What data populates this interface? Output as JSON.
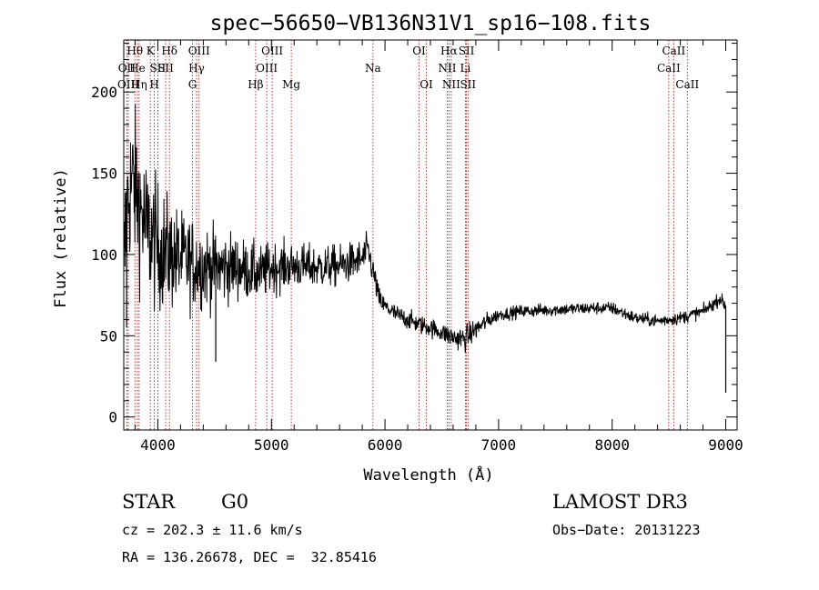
{
  "chart_data": {
    "type": "line",
    "title": "spec−56650−VB136N31V1_sp16−108.fits",
    "xlabel": "Wavelength (Å)",
    "ylabel": "Flux (relative)",
    "xlim": [
      3700,
      9100
    ],
    "ylim": [
      -8,
      232
    ],
    "xticks": [
      4000,
      5000,
      6000,
      7000,
      8000,
      9000
    ],
    "yticks": [
      0,
      50,
      100,
      150,
      200
    ],
    "grid": false,
    "line_color": "#000000",
    "marker_color": "#b22222",
    "spectrum_anchors": [
      [
        3700,
        80
      ],
      [
        3720,
        120
      ],
      [
        3750,
        140
      ],
      [
        3780,
        145
      ],
      [
        3820,
        135
      ],
      [
        3900,
        115
      ],
      [
        4000,
        105
      ],
      [
        4100,
        100
      ],
      [
        4200,
        97
      ],
      [
        4300,
        95
      ],
      [
        4400,
        93
      ],
      [
        4500,
        92
      ],
      [
        4600,
        92
      ],
      [
        4700,
        92
      ],
      [
        4800,
        90
      ],
      [
        4900,
        88
      ],
      [
        5000,
        92
      ],
      [
        5200,
        93
      ],
      [
        5400,
        92
      ],
      [
        5600,
        93
      ],
      [
        5800,
        97
      ],
      [
        5850,
        103
      ],
      [
        5900,
        88
      ],
      [
        5950,
        72
      ],
      [
        6000,
        68
      ],
      [
        6100,
        63
      ],
      [
        6200,
        60
      ],
      [
        6300,
        57
      ],
      [
        6400,
        55
      ],
      [
        6500,
        52
      ],
      [
        6600,
        49
      ],
      [
        6700,
        48
      ],
      [
        6750,
        51
      ],
      [
        6800,
        54
      ],
      [
        6900,
        59
      ],
      [
        7000,
        63
      ],
      [
        7200,
        65
      ],
      [
        7500,
        66
      ],
      [
        7800,
        67
      ],
      [
        8000,
        67
      ],
      [
        8100,
        64
      ],
      [
        8200,
        61
      ],
      [
        8300,
        60
      ],
      [
        8400,
        59
      ],
      [
        8500,
        60
      ],
      [
        8600,
        61
      ],
      [
        8700,
        63
      ],
      [
        8800,
        65
      ],
      [
        8900,
        70
      ],
      [
        8950,
        73
      ],
      [
        9000,
        68
      ]
    ],
    "spectrum_noise_sigma": [
      [
        3700,
        25
      ],
      [
        3900,
        22
      ],
      [
        4200,
        15
      ],
      [
        4500,
        12
      ],
      [
        4800,
        9
      ],
      [
        5200,
        7
      ],
      [
        5800,
        6
      ],
      [
        6000,
        3
      ],
      [
        6500,
        3
      ],
      [
        6700,
        4
      ],
      [
        7000,
        2
      ],
      [
        8000,
        2
      ],
      [
        9000,
        2
      ]
    ],
    "spectrum_spikes": [
      {
        "x": 4510,
        "y": 34
      },
      {
        "x": 3725,
        "y": 55
      },
      {
        "x": 9000,
        "y": 15
      }
    ],
    "lines": [
      {
        "label": "Hθ",
        "x": 3798,
        "row": 0
      },
      {
        "label": "OII",
        "x": 3727,
        "row": 1
      },
      {
        "label": "OIII",
        "x": 3740,
        "row": 2
      },
      {
        "label": "He",
        "x": 3820,
        "row": 1
      },
      {
        "label": "Hη",
        "x": 3835,
        "row": 2
      },
      {
        "label": "K",
        "x": 3934,
        "row": 0
      },
      {
        "label": "SII",
        "x": 4000,
        "row": 1
      },
      {
        "label": "H",
        "x": 3969,
        "row": 2
      },
      {
        "label": "Hδ",
        "x": 4102,
        "row": 0
      },
      {
        "label": "SII",
        "x": 4069,
        "row": 1
      },
      {
        "label": "OIII",
        "x": 4363,
        "row": 0
      },
      {
        "label": "Hγ",
        "x": 4341,
        "row": 1
      },
      {
        "label": "G",
        "x": 4305,
        "row": 2
      },
      {
        "label": "OIII",
        "x": 5007,
        "row": 0
      },
      {
        "label": "OIII",
        "x": 4959,
        "row": 1
      },
      {
        "label": "Hβ",
        "x": 4861,
        "row": 2
      },
      {
        "label": "Mg",
        "x": 5175,
        "row": 2
      },
      {
        "label": "Na",
        "x": 5894,
        "row": 1
      },
      {
        "label": "OI",
        "x": 6300,
        "row": 0
      },
      {
        "label": "OI",
        "x": 6364,
        "row": 2
      },
      {
        "label": "Hα",
        "x": 6563,
        "row": 0
      },
      {
        "label": "NII",
        "x": 6548,
        "row": 1
      },
      {
        "label": "NII",
        "x": 6583,
        "row": 2
      },
      {
        "label": "SII",
        "x": 6717,
        "row": 0
      },
      {
        "label": "Li",
        "x": 6708,
        "row": 1
      },
      {
        "label": "SII",
        "x": 6731,
        "row": 2
      },
      {
        "label": "CaII",
        "x": 8542,
        "row": 0
      },
      {
        "label": "CaII",
        "x": 8498,
        "row": 1
      },
      {
        "label": "CaII",
        "x": 8662,
        "row": 2
      }
    ]
  },
  "info": {
    "class": "STAR",
    "subclass": "G0",
    "survey": "LAMOST DR3",
    "cz": "cz = 202.3 ± 11.6 km/s",
    "obs_date": "Obs−Date: 20131223",
    "radec": "RA = 136.26678, DEC =  32.85416"
  }
}
